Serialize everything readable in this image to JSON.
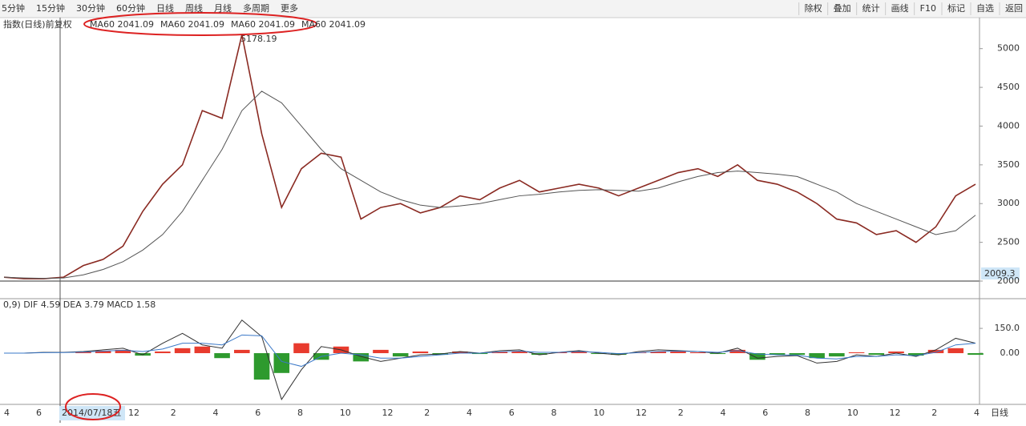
{
  "toolbar": {
    "periods": [
      "5分钟",
      "15分钟",
      "30分钟",
      "60分钟",
      "日线",
      "周线",
      "月线",
      "多周期",
      "更多"
    ],
    "tools": [
      "除权",
      "叠加",
      "统计",
      "画线",
      "F10",
      "标记",
      "自选",
      "返回"
    ]
  },
  "indicator_title": "指数(日线)前复权",
  "ma_labels": [
    "MA60 2041.09",
    "MA60 2041.09",
    "MA60 2041.09",
    "MA60 2041.09"
  ],
  "crosshair_label": "2014/07/18五",
  "period_label": "日线",
  "x_labels": [
    "4",
    "6",
    "12",
    "2",
    "4",
    "6",
    "8",
    "10",
    "12",
    "2",
    "4",
    "6",
    "8",
    "10",
    "12",
    "2",
    "4",
    "6",
    "8",
    "10",
    "12",
    "2",
    "4"
  ],
  "chart_data": [
    {
      "type": "line",
      "annotation": "5178.19",
      "price_label": "2009.3",
      "ylim": [
        2000,
        5400
      ],
      "yticks": [
        2000,
        2500,
        3000,
        3500,
        4000,
        4500,
        5000
      ],
      "series": [
        {
          "color": "#8a2a22",
          "values": [
            2050,
            2030,
            2030,
            2050,
            2200,
            2280,
            2450,
            2900,
            3250,
            3500,
            4200,
            4100,
            5178,
            3900,
            2950,
            3450,
            3650,
            3600,
            2800,
            2950,
            3000,
            2880,
            2950,
            3100,
            3050,
            3200,
            3300,
            3150,
            3200,
            3250,
            3200,
            3100,
            3200,
            3300,
            3400,
            3450,
            3350,
            3500,
            3300,
            3250,
            3150,
            3000,
            2800,
            2750,
            2600,
            2650,
            2500,
            2700,
            3100,
            3250
          ]
        },
        {
          "color": "#555555",
          "values": [
            2050,
            2040,
            2035,
            2040,
            2080,
            2150,
            2250,
            2400,
            2600,
            2900,
            3300,
            3700,
            4200,
            4450,
            4300,
            4000,
            3700,
            3450,
            3300,
            3150,
            3050,
            2980,
            2950,
            2970,
            3000,
            3050,
            3100,
            3120,
            3150,
            3170,
            3180,
            3170,
            3160,
            3200,
            3280,
            3350,
            3400,
            3420,
            3400,
            3380,
            3350,
            3250,
            3150,
            3000,
            2900,
            2800,
            2700,
            2600,
            2650,
            2850
          ]
        }
      ]
    },
    {
      "type": "macd",
      "title": "0,9) DIF 4.59 DEA 3.79 MACD 1.58",
      "ylim": [
        -310,
        320
      ],
      "yticks": [
        {
          "value": 0,
          "label": "0.00"
        },
        {
          "value": 150,
          "label": "150.0"
        }
      ],
      "up_color": "#e83b2e",
      "down_color": "#2e9a2e",
      "bars": [
        0,
        0,
        0,
        0,
        10,
        15,
        20,
        -15,
        10,
        30,
        40,
        -30,
        20,
        -160,
        -120,
        60,
        -40,
        40,
        -50,
        20,
        -20,
        10,
        -10,
        10,
        -5,
        8,
        10,
        -10,
        5,
        10,
        -5,
        -10,
        5,
        10,
        10,
        5,
        -5,
        20,
        -40,
        -10,
        -10,
        -30,
        -20,
        5,
        -10,
        10,
        -15,
        20,
        30,
        -10
      ],
      "series": [
        {
          "color": "#333333",
          "values": [
            0,
            0,
            5,
            5,
            10,
            20,
            30,
            -10,
            60,
            120,
            50,
            30,
            200,
            100,
            -280,
            -100,
            40,
            20,
            -20,
            -50,
            -30,
            -10,
            -5,
            10,
            0,
            15,
            20,
            -10,
            5,
            15,
            0,
            -10,
            10,
            20,
            15,
            10,
            0,
            30,
            -30,
            -20,
            -15,
            -60,
            -50,
            -10,
            -20,
            0,
            -20,
            20,
            90,
            60
          ]
        },
        {
          "color": "#3a78c8",
          "values": [
            0,
            0,
            3,
            4,
            7,
            12,
            18,
            10,
            25,
            60,
            60,
            50,
            110,
            105,
            -50,
            -80,
            -20,
            0,
            -10,
            -30,
            -30,
            -20,
            -10,
            0,
            0,
            8,
            12,
            5,
            5,
            10,
            5,
            -3,
            3,
            10,
            12,
            10,
            5,
            15,
            -5,
            -10,
            -12,
            -30,
            -35,
            -20,
            -20,
            -10,
            -15,
            5,
            50,
            60
          ]
        }
      ]
    }
  ]
}
